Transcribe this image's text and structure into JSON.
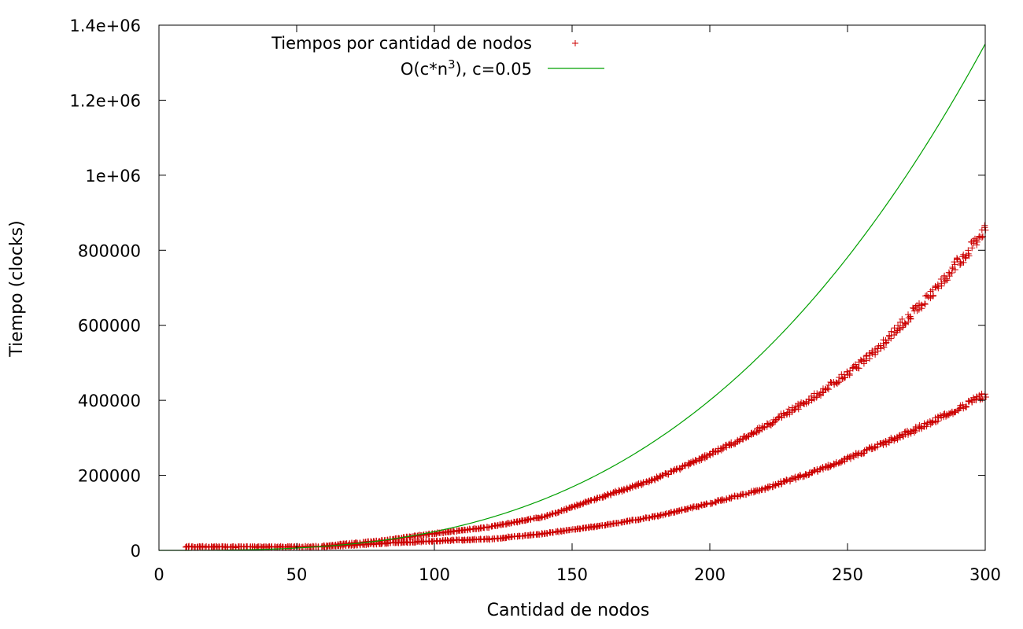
{
  "chart_data": {
    "type": "scatter",
    "title": "",
    "xlabel": "Cantidad de nodos",
    "ylabel": "Tiempo (clocks)",
    "xlim": [
      0,
      300
    ],
    "ylim": [
      0,
      1400000
    ],
    "x_ticks": [
      0,
      50,
      100,
      150,
      200,
      250,
      300
    ],
    "x_tick_labels": [
      "0",
      "50",
      "100",
      "150",
      "200",
      "250",
      "300"
    ],
    "y_ticks": [
      0,
      200000,
      400000,
      600000,
      800000,
      1000000,
      1200000,
      1400000
    ],
    "y_tick_labels": [
      "0",
      "200000",
      "400000",
      "600000",
      "800000",
      "1e+06",
      "1.2e+06",
      "1.4e+06"
    ],
    "grid": false,
    "legend_position": "top-right",
    "series": [
      {
        "name": "Tiempos por cantidad de nodos",
        "kind": "points",
        "marker": "+",
        "color": "#cc0000",
        "x_range": [
          10,
          300
        ],
        "bands": [
          {
            "label": "upper",
            "x_start": 60,
            "samples": [
              [
                60,
                12000
              ],
              [
                80,
                25000
              ],
              [
                100,
                45000
              ],
              [
                120,
                62000
              ],
              [
                140,
                90000
              ],
              [
                150,
                115000
              ],
              [
                160,
                140000
              ],
              [
                180,
                190000
              ],
              [
                200,
                255000
              ],
              [
                220,
                330000
              ],
              [
                240,
                420000
              ],
              [
                250,
                470000
              ],
              [
                260,
                530000
              ],
              [
                280,
                680000
              ],
              [
                300,
                850000
              ]
            ]
          },
          {
            "label": "lower",
            "x_start": 10,
            "samples": [
              [
                10,
                10000
              ],
              [
                30,
                9000
              ],
              [
                60,
                10000
              ],
              [
                80,
                18000
              ],
              [
                100,
                25000
              ],
              [
                120,
                30000
              ],
              [
                140,
                45000
              ],
              [
                150,
                55000
              ],
              [
                160,
                65000
              ],
              [
                180,
                90000
              ],
              [
                200,
                125000
              ],
              [
                220,
                165000
              ],
              [
                240,
                215000
              ],
              [
                250,
                245000
              ],
              [
                260,
                275000
              ],
              [
                280,
                340000
              ],
              [
                300,
                415000
              ]
            ]
          }
        ]
      },
      {
        "name": "O(c*n^3), c=0.05",
        "legend_parts": {
          "before": "O(c*n",
          "sup": "3",
          "after": "), c=0.05"
        },
        "kind": "line",
        "color": "#00a000",
        "formula": "0.05*n^3",
        "coefficient": 0.05,
        "exponent": 3,
        "x_range": [
          0,
          300
        ],
        "points": [
          [
            0,
            0
          ],
          [
            50,
            6250
          ],
          [
            100,
            50000
          ],
          [
            150,
            168750
          ],
          [
            200,
            400000
          ],
          [
            250,
            781250
          ],
          [
            300,
            1350000
          ]
        ]
      }
    ]
  }
}
